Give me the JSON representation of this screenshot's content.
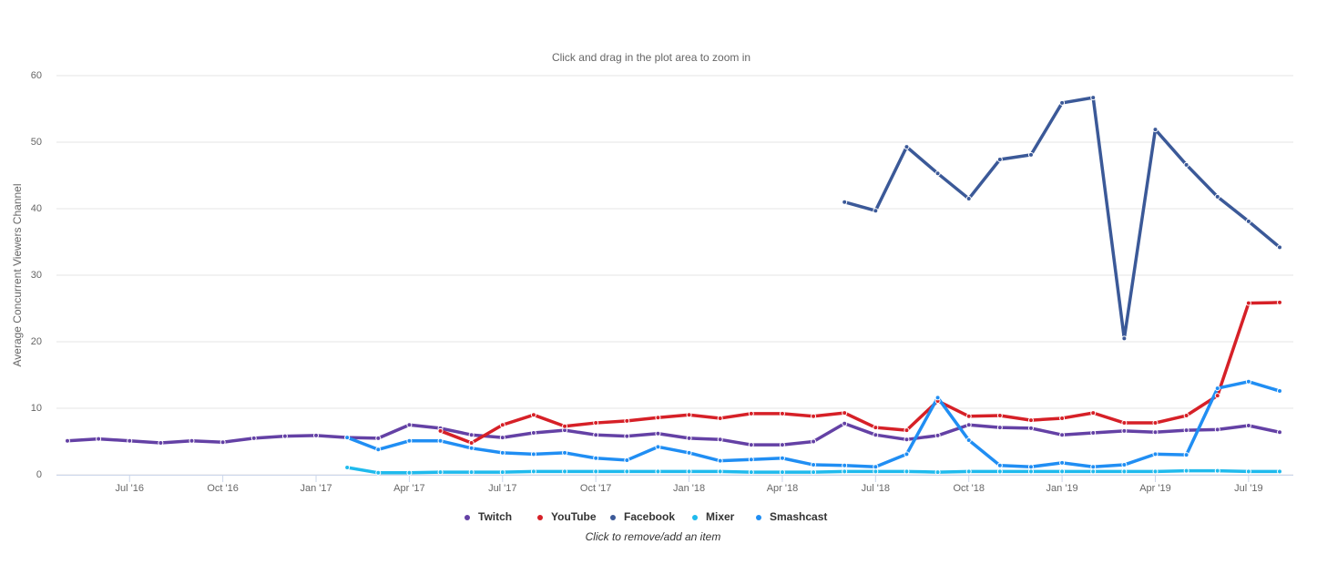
{
  "chart_data": {
    "type": "line",
    "subtitle": "Click and drag in the plot area to zoom in",
    "y_label": "Average Concurrent Viewers Channel",
    "legend_note": "Click to remove/add an item",
    "legend": "bottom",
    "grid": true,
    "x": [
      "2016-05",
      "2016-06",
      "2016-07",
      "2016-08",
      "2016-09",
      "2016-10",
      "2016-11",
      "2016-12",
      "2017-01",
      "2017-02",
      "2017-03",
      "2017-04",
      "2017-05",
      "2017-06",
      "2017-07",
      "2017-08",
      "2017-09",
      "2017-10",
      "2017-11",
      "2017-12",
      "2018-01",
      "2018-02",
      "2018-03",
      "2018-04",
      "2018-05",
      "2018-06",
      "2018-07",
      "2018-08",
      "2018-09",
      "2018-10",
      "2018-11",
      "2018-12",
      "2019-01",
      "2019-02",
      "2019-03",
      "2019-04",
      "2019-05",
      "2019-06",
      "2019-07",
      "2019-08"
    ],
    "xlim": [
      "2016-05",
      "2019-08"
    ],
    "xticks": [
      {
        "value": "2016-07",
        "label": "Jul '16"
      },
      {
        "value": "2016-10",
        "label": "Oct '16"
      },
      {
        "value": "2017-01",
        "label": "Jan '17"
      },
      {
        "value": "2017-04",
        "label": "Apr '17"
      },
      {
        "value": "2017-07",
        "label": "Jul '17"
      },
      {
        "value": "2017-10",
        "label": "Oct '17"
      },
      {
        "value": "2018-01",
        "label": "Jan '18"
      },
      {
        "value": "2018-04",
        "label": "Apr '18"
      },
      {
        "value": "2018-07",
        "label": "Jul '18"
      },
      {
        "value": "2018-10",
        "label": "Oct '18"
      },
      {
        "value": "2019-01",
        "label": "Jan '19"
      },
      {
        "value": "2019-04",
        "label": "Apr '19"
      },
      {
        "value": "2019-07",
        "label": "Jul '19"
      }
    ],
    "ylim": [
      0,
      60
    ],
    "yticks": [
      0,
      10,
      20,
      30,
      40,
      50,
      60
    ],
    "series": [
      {
        "name": "Twitch",
        "color": "#6441a5",
        "values": [
          5.1,
          5.4,
          5.1,
          4.8,
          5.1,
          4.9,
          5.5,
          5.8,
          5.9,
          5.6,
          5.5,
          7.5,
          7.0,
          6.0,
          5.6,
          6.3,
          6.7,
          6.0,
          5.8,
          6.2,
          5.5,
          5.3,
          4.5,
          4.5,
          5.0,
          7.7,
          6.0,
          5.3,
          5.9,
          7.5,
          7.1,
          7.0,
          6.0,
          6.3,
          6.6,
          6.4,
          6.7,
          6.8,
          7.4,
          6.4
        ]
      },
      {
        "name": "YouTube",
        "color": "#d62027",
        "values": [
          null,
          null,
          null,
          null,
          null,
          null,
          null,
          null,
          null,
          null,
          null,
          null,
          6.6,
          4.8,
          7.5,
          9.0,
          7.3,
          7.8,
          8.1,
          8.6,
          9.0,
          8.5,
          9.2,
          9.2,
          8.8,
          9.3,
          7.1,
          6.7,
          11.1,
          8.8,
          8.9,
          8.2,
          8.5,
          9.3,
          7.8,
          7.8,
          8.9,
          11.9,
          25.8,
          25.9
        ]
      },
      {
        "name": "Facebook",
        "color": "#3b5998",
        "values": [
          null,
          null,
          null,
          null,
          null,
          null,
          null,
          null,
          null,
          null,
          null,
          null,
          null,
          null,
          null,
          null,
          null,
          null,
          null,
          null,
          null,
          null,
          null,
          null,
          null,
          41.0,
          39.7,
          49.3,
          45.3,
          41.5,
          47.4,
          48.1,
          55.9,
          56.7,
          20.5,
          51.9,
          46.6,
          41.8,
          38.1,
          34.2
        ]
      },
      {
        "name": "Mixer",
        "color": "#1fbaed",
        "values": [
          null,
          null,
          null,
          null,
          null,
          null,
          null,
          null,
          null,
          1.1,
          0.3,
          0.3,
          0.4,
          0.4,
          0.4,
          0.5,
          0.5,
          0.5,
          0.5,
          0.5,
          0.5,
          0.5,
          0.4,
          0.4,
          0.4,
          0.5,
          0.5,
          0.5,
          0.4,
          0.5,
          0.5,
          0.5,
          0.5,
          0.5,
          0.5,
          0.5,
          0.6,
          0.6,
          0.5,
          0.5
        ]
      },
      {
        "name": "Smashcast",
        "color": "#208ef3",
        "values": [
          null,
          null,
          null,
          null,
          null,
          null,
          null,
          null,
          null,
          5.6,
          3.8,
          5.1,
          5.1,
          4.0,
          3.3,
          3.1,
          3.3,
          2.5,
          2.2,
          4.2,
          3.3,
          2.1,
          2.3,
          2.5,
          1.5,
          1.4,
          1.2,
          3.1,
          11.6,
          5.2,
          1.4,
          1.2,
          1.8,
          1.2,
          1.5,
          3.1,
          3.0,
          13.0,
          14.0,
          12.6
        ]
      }
    ]
  }
}
